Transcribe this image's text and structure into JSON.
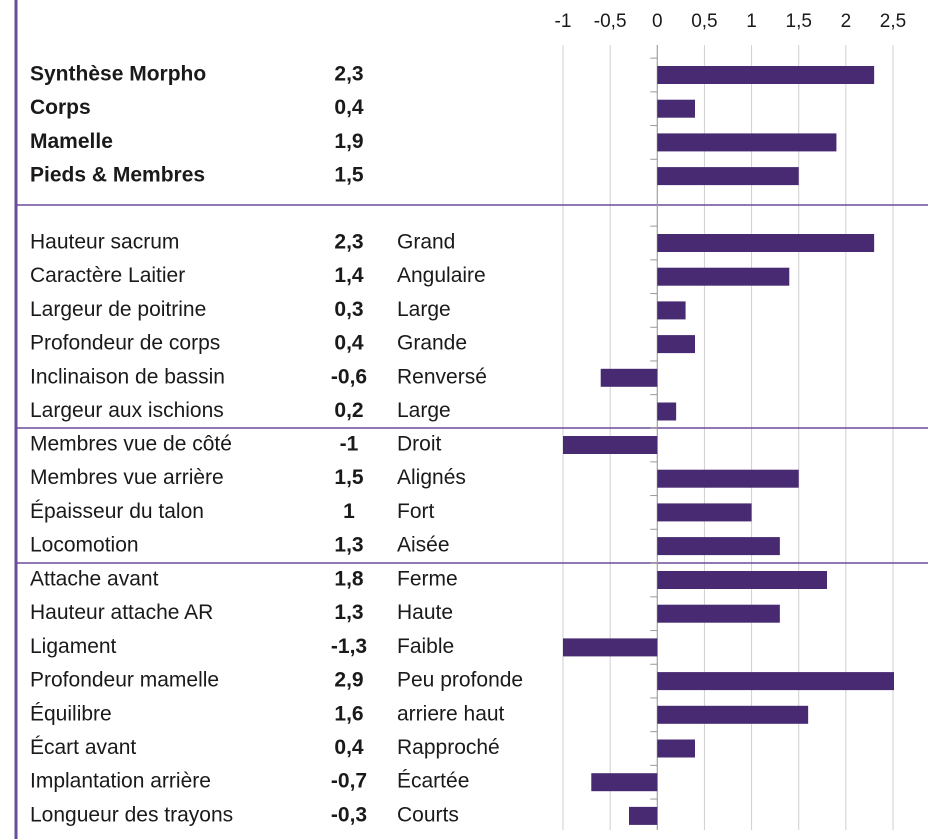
{
  "chart_data": {
    "type": "bar",
    "color": "#472a72",
    "xlim": [
      -1,
      2.5
    ],
    "xticks": [
      -1,
      {
        "value": -0.5,
        "label": "-0,5"
      },
      0,
      {
        "value": 0.5,
        "label": "0,5"
      },
      1,
      {
        "value": 1.5,
        "label": "1,5"
      },
      2,
      {
        "value": 2.5,
        "label": "2,5"
      }
    ],
    "grid": true,
    "groups": [
      {
        "bold": true,
        "categories": [
          "Synthèse Morpho",
          "Corps",
          "Mamelle",
          "Pieds & Membres"
        ],
        "values": [
          2.3,
          0.4,
          1.9,
          1.5
        ],
        "value_labels": [
          "2,3",
          "0,4",
          "1,9",
          "1,5"
        ]
      },
      {
        "bold": false,
        "categories": [
          "Hauteur sacrum",
          "Caractère Laitier",
          "Largeur de poitrine",
          "Profondeur de corps",
          "Inclinaison de bassin",
          "Largeur aux ischions"
        ],
        "values": [
          2.3,
          1.4,
          0.3,
          0.4,
          -0.6,
          0.2
        ],
        "value_labels": [
          "2,3",
          "1,4",
          "0,3",
          "0,4",
          "-0,6",
          "0,2"
        ],
        "descriptions": [
          "Grand",
          "Angulaire",
          "Large",
          "Grande",
          "Renversé",
          "Large"
        ]
      },
      {
        "bold": false,
        "categories": [
          "Membres vue de côté",
          "Membres vue arrière",
          "Épaisseur du talon",
          "Locomotion"
        ],
        "values": [
          -1,
          1.5,
          1,
          1.3
        ],
        "value_labels": [
          "-1",
          "1,5",
          "1",
          "1,3"
        ],
        "descriptions": [
          "Droit",
          "Alignés",
          "Fort",
          "Aisée"
        ]
      },
      {
        "bold": false,
        "categories": [
          "Attache avant",
          "Hauteur attache AR",
          "Ligament",
          "Profondeur mamelle",
          "Équilibre",
          "Écart avant",
          "Implantation arrière",
          "Longueur des trayons"
        ],
        "values": [
          1.8,
          1.3,
          -1.3,
          2.9,
          1.6,
          0.4,
          -0.7,
          -0.3
        ],
        "value_labels": [
          "1,8",
          "1,3",
          "-1,3",
          "2,9",
          "1,6",
          "0,4",
          "-0,7",
          "-0,3"
        ],
        "descriptions": [
          "Ferme",
          "Haute",
          "Faible",
          "Peu profonde",
          "arriere haut",
          "Rapproché",
          "Écartée",
          "Courts"
        ]
      }
    ]
  }
}
